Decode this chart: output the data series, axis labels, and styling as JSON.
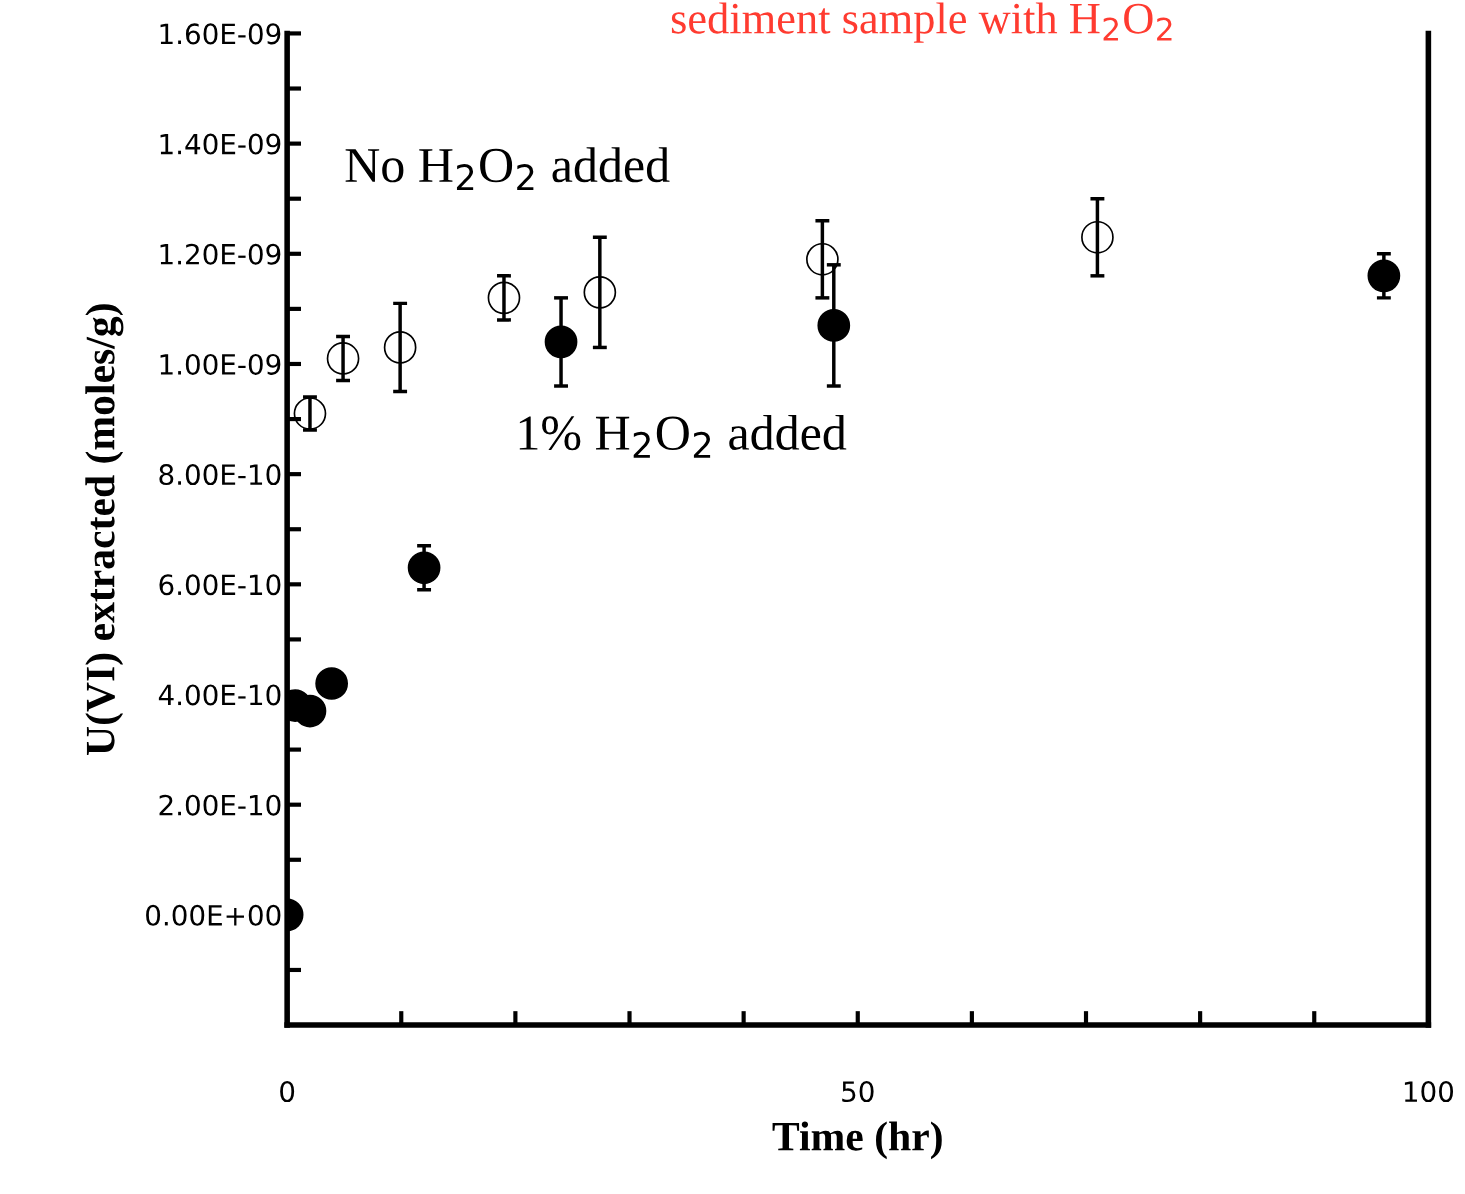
{
  "chart_data": {
    "type": "scatter",
    "title": "sediment sample with H$_{2}$O$_{2}$",
    "xlabel": "Time (hr)",
    "ylabel": "U(VI) extracted (moles/g)",
    "annotations": [
      "No H$_{2}$O$_{2}$ added",
      "1% H$_{2}$O$_{2}$ added"
    ],
    "series": [
      {
        "color": "#000000",
        "x": [
          2.0,
          4.9,
          9.9,
          19.0,
          27.4,
          46.9,
          71.0
        ],
        "values": [
          9.1e-10,
          1.01e-09,
          1.03e-09,
          1.12e-09,
          1.13e-09,
          1.19e-09,
          1.23e-09
        ],
        "errors": [
          3e-11,
          4e-11,
          8e-11,
          4e-11,
          1e-10,
          7e-11,
          7e-11
        ]
      },
      {
        "color": "#000000",
        "x": [
          0,
          0.7,
          2.0,
          3.9,
          12.0,
          24.0,
          47.9,
          96.1
        ],
        "values": [
          0,
          3.8e-10,
          3.7e-10,
          4.2e-10,
          6.3e-10,
          1.04e-09,
          1.07e-09,
          1.16e-09
        ],
        "errors": [
          null,
          null,
          null,
          null,
          4e-11,
          8e-11,
          1.1e-10,
          4e-11
        ]
      }
    ],
    "marker": "circle",
    "grid": false,
    "legend": false,
    "xlim": [
      0,
      100
    ],
    "xticks": [
      0,
      {
        "value": 10,
        "label": null
      },
      {
        "value": 20,
        "label": null
      },
      {
        "value": 30,
        "label": null
      },
      {
        "value": 40,
        "label": null
      },
      50,
      {
        "value": 60,
        "label": null
      },
      {
        "value": 70,
        "label": null
      },
      {
        "value": 80,
        "label": null
      },
      {
        "value": 90,
        "label": null
      },
      100
    ],
    "ylim": [
      -2e-10,
      1.6e-09
    ],
    "yticks": [
      {
        "value": -1e-10,
        "label": null
      },
      {
        "value": 0,
        "label": "0.00E+00"
      },
      {
        "value": 1e-10,
        "label": null
      },
      {
        "value": 2e-10,
        "label": "2.00E-10"
      },
      {
        "value": 3e-10,
        "label": null
      },
      {
        "value": 4e-10,
        "label": "4.00E-10"
      },
      {
        "value": 5e-10,
        "label": null
      },
      {
        "value": 6e-10,
        "label": "6.00E-10"
      },
      {
        "value": 7e-10,
        "label": null
      },
      {
        "value": 8e-10,
        "label": "8.00E-10"
      },
      {
        "value": 9e-10,
        "label": null
      },
      {
        "value": 1e-09,
        "label": "1.00E-09"
      },
      {
        "value": 1.1e-09,
        "label": null
      },
      {
        "value": 1.2e-09,
        "label": "1.20E-09"
      },
      {
        "value": 1.3e-09,
        "label": null
      },
      {
        "value": 1.4e-09,
        "label": "1.40E-09"
      },
      {
        "value": 1.5e-09,
        "label": null
      },
      {
        "value": 1.6e-09,
        "label": "1.60E-09"
      }
    ]
  }
}
